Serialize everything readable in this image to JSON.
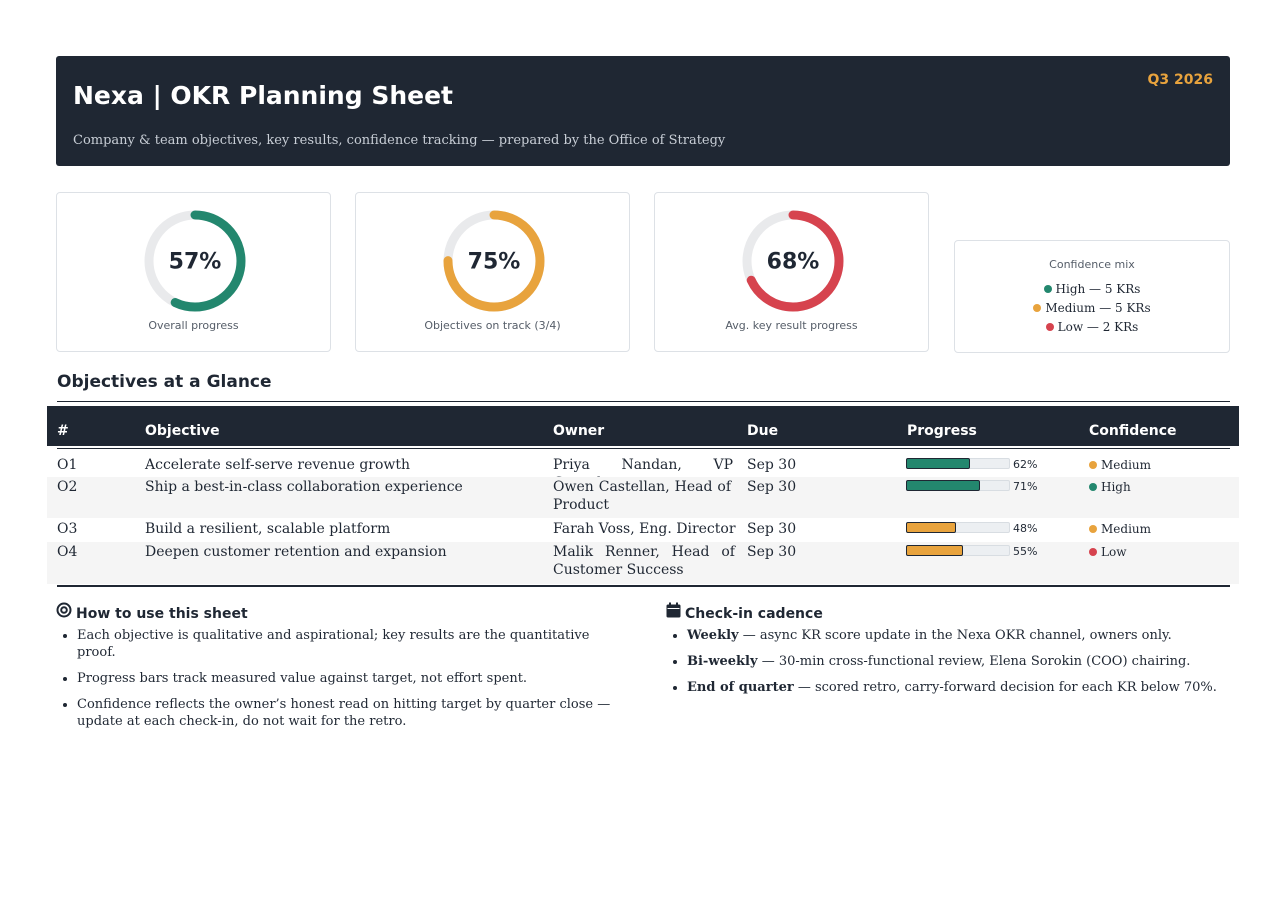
{
  "header": {
    "title": "Nexa | OKR Planning Sheet",
    "subtitle": "Company & team objectives, key results, confidence tracking — prepared by the Office of Strategy",
    "quarter": "Q3 2026",
    "background": "#1f2733",
    "accent": "#e8a33d"
  },
  "kpis": [
    {
      "value": "57%",
      "fraction": 0.57,
      "label": "Overall progress",
      "color": "#23876e"
    },
    {
      "value": "75%",
      "fraction": 0.75,
      "label": "Objectives on track (3/4)",
      "color": "#e8a33d"
    },
    {
      "value": "68%",
      "fraction": 0.68,
      "label": "Avg. key result progress",
      "color": "#d6434e"
    }
  ],
  "confidence_mix": {
    "title": "Confidence mix",
    "items": [
      {
        "label": "High — 5 KRs",
        "color": "#23876e"
      },
      {
        "label": "Medium — 5 KRs",
        "color": "#e8a33d"
      },
      {
        "label": "Low — 2 KRs",
        "color": "#d6434e"
      }
    ]
  },
  "objectives": {
    "title": "Objectives at a Glance",
    "columns": [
      "#",
      "Objective",
      "Owner",
      "Due",
      "Progress",
      "Confidence"
    ],
    "rows": [
      {
        "id": "O1",
        "objective": "Accelerate self-serve revenue growth",
        "owner": "Priya Nandan, VP Growth",
        "due": "Sep 30",
        "progress": 0.62,
        "progress_label": "62%",
        "confidence": "Medium",
        "bar_color": "#23876e",
        "conf_color": "#e8a33d"
      },
      {
        "id": "O2",
        "objective": "Ship a best-in-class collaboration experience",
        "owner": "Owen Castellan, Head of Product",
        "due": "Sep 30",
        "progress": 0.71,
        "progress_label": "71%",
        "confidence": "High",
        "bar_color": "#23876e",
        "conf_color": "#23876e"
      },
      {
        "id": "O3",
        "objective": "Build a resilient, scalable platform",
        "owner": "Farah Voss, Eng. Director",
        "due": "Sep 30",
        "progress": 0.48,
        "progress_label": "48%",
        "confidence": "Medium",
        "bar_color": "#e8a33d",
        "conf_color": "#e8a33d"
      },
      {
        "id": "O4",
        "objective": "Deepen customer retention and expansion",
        "owner": "Malik Renner, Head of Customer Success",
        "due": "Sep 30",
        "progress": 0.55,
        "progress_label": "55%",
        "confidence": "Low",
        "bar_color": "#e8a33d",
        "conf_color": "#d6434e"
      }
    ]
  },
  "how_to": {
    "title": "How to use this sheet",
    "icon": "target-icon",
    "items": [
      "Each objective is qualitative and aspirational; key results are the quantitative proof.",
      "Progress bars track measured value against target, not effort spent.",
      "Confidence reflects the owner’s honest read on hitting target by quarter close — update at each check-in, do not wait for the retro."
    ]
  },
  "cadence": {
    "title": "Check-in cadence",
    "icon": "calendar-icon",
    "items": [
      {
        "term": "Weekly",
        "text": " — async KR score update in the Nexa OKR channel, owners only."
      },
      {
        "term": "Bi-weekly",
        "text": " — 30-min cross-functional review, Elena Sorokin (COO) chairing."
      },
      {
        "term": "End of quarter",
        "text": " — scored retro, carry-forward decision for each KR below 70%."
      }
    ]
  }
}
